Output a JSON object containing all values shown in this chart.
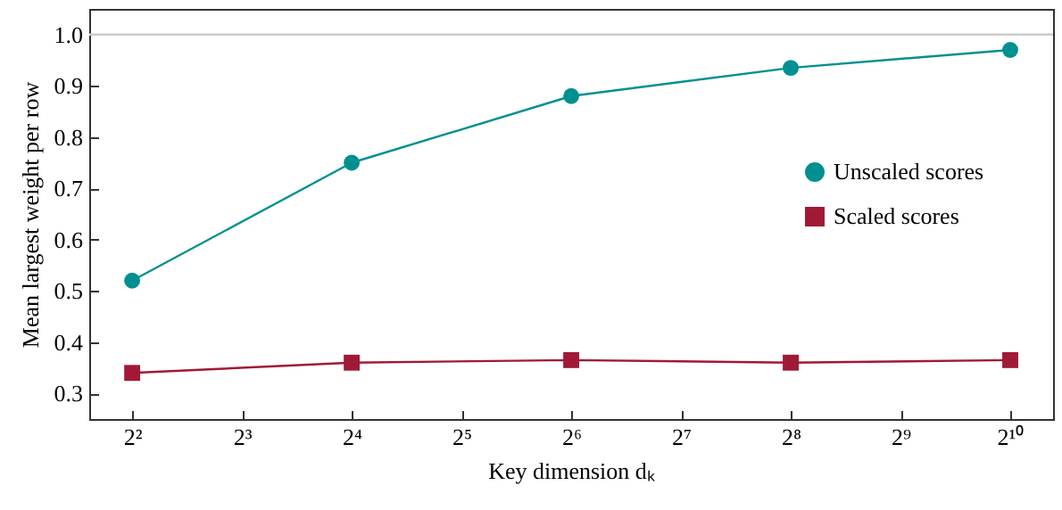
{
  "chart_data": {
    "type": "line",
    "xlabel": "Key dimension dₖ",
    "ylabel": "Mean largest weight per row",
    "x": [
      4,
      16,
      64,
      256,
      1024
    ],
    "series": [
      {
        "name": "Unscaled scores",
        "color": "#009090",
        "marker": "circle",
        "values": [
          0.52,
          0.75,
          0.88,
          0.935,
          0.97
        ]
      },
      {
        "name": "Scaled scores",
        "color": "#a01a35",
        "marker": "square",
        "values": [
          0.34,
          0.36,
          0.365,
          0.36,
          0.365
        ]
      }
    ],
    "log": "x",
    "xlim": [
      3.05,
      1342
    ],
    "xticks": [
      {
        "value": 4,
        "label": "2²"
      },
      {
        "value": 8,
        "label": "2³"
      },
      {
        "value": 16,
        "label": "2⁴"
      },
      {
        "value": 32,
        "label": "2⁵"
      },
      {
        "value": 64,
        "label": "2⁶"
      },
      {
        "value": 128,
        "label": "2⁷"
      },
      {
        "value": 256,
        "label": "2⁸"
      },
      {
        "value": 512,
        "label": "2⁹"
      },
      {
        "value": 1024,
        "label": "2¹⁰"
      }
    ],
    "ylim": [
      0.25,
      1.05
    ],
    "yticks": [
      0.3,
      0.4,
      0.5,
      0.6,
      0.7,
      0.8,
      0.9,
      {
        "value": 1,
        "label": "1.0"
      }
    ],
    "ref_lines": [
      {
        "axis": "y",
        "value": 1,
        "color": "#cccccc"
      }
    ],
    "grid": false,
    "legend": "right"
  }
}
